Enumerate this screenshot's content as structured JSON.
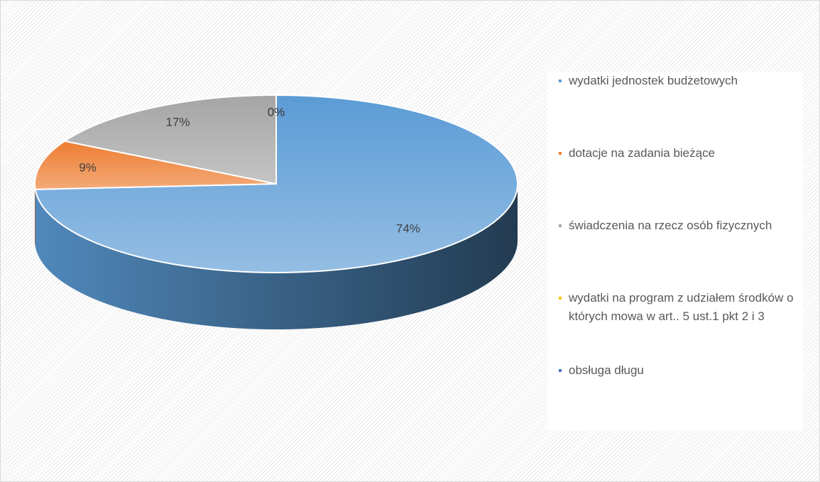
{
  "chart_data": {
    "type": "pie",
    "categories": [
      "wydatki jednostek budżetowych",
      "dotacje na zadania bieżące",
      "świadczenia na rzecz osób fizycznych",
      "wydatki na program z udziałem środków o których mowa w art.. 5 ust.1 pkt 2 i 3",
      "obsługa długu"
    ],
    "values": [
      74,
      9,
      17,
      0,
      0
    ],
    "value_labels": [
      "74%",
      "9%",
      "17%",
      "0%",
      "0%"
    ],
    "colors": [
      "#5b9bd5",
      "#ed7d31",
      "#a5a5a5",
      "#ffc000",
      "#4472c4"
    ],
    "legend": "right"
  }
}
